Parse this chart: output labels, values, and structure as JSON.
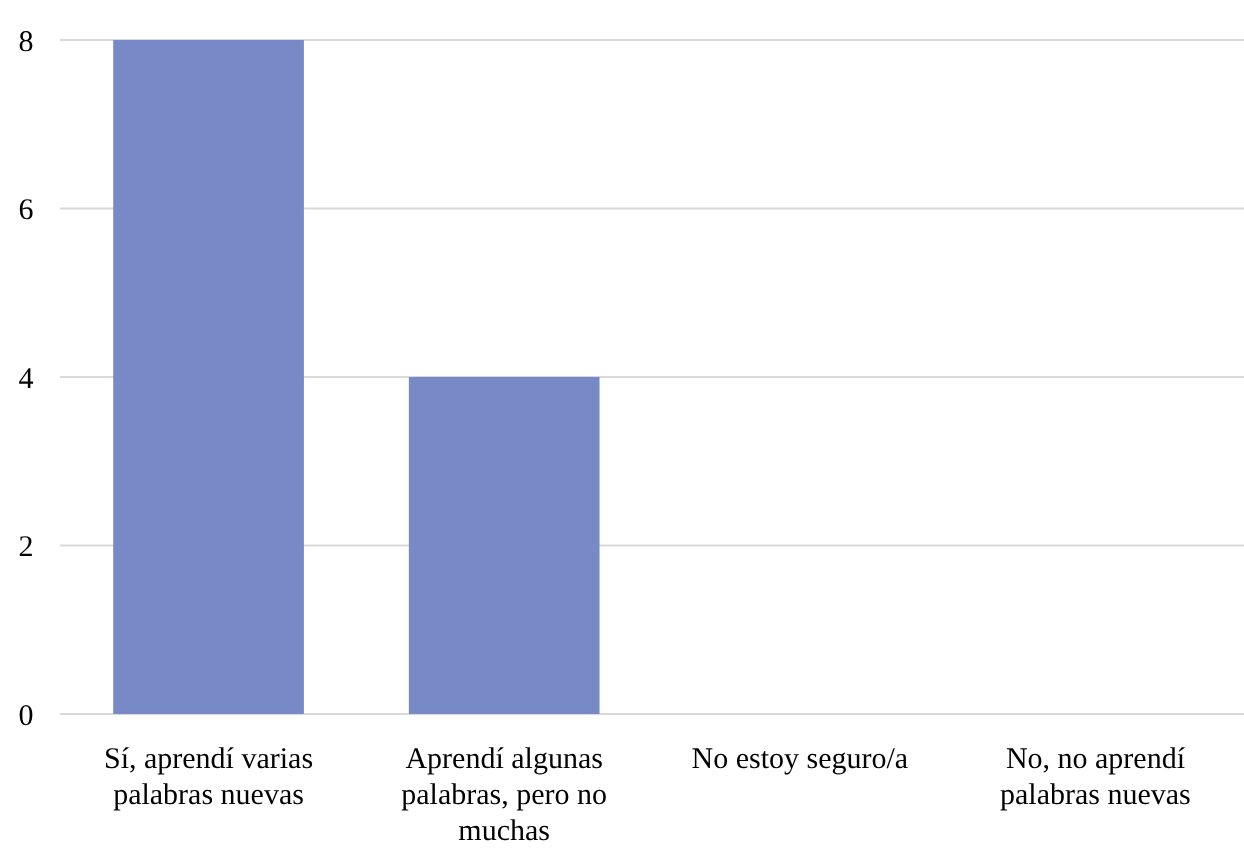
{
  "chart_data": {
    "type": "bar",
    "categories": [
      "Sí, aprendí varias palabras nuevas",
      "Aprendí algunas palabras, pero no muchas",
      "No estoy seguro/a",
      "No, no aprendí palabras nuevas"
    ],
    "values": [
      8,
      4,
      0,
      0
    ],
    "color": "#7789c6",
    "ylim": [
      0,
      8
    ],
    "yticks": [
      0,
      2,
      4,
      6,
      8
    ],
    "grid": "y"
  }
}
